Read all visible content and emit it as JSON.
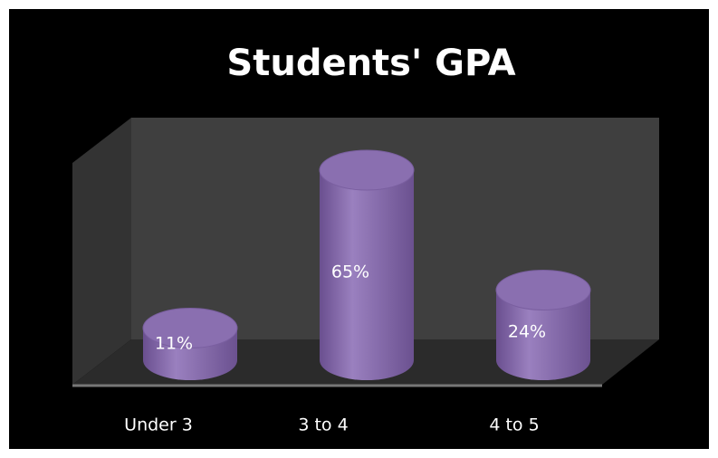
{
  "chart_data": {
    "type": "bar3d",
    "title": "Students' GPA",
    "categories": [
      "Under 3",
      "3 to 4",
      "4 to 5"
    ],
    "values": [
      11,
      65,
      24
    ],
    "value_labels": [
      "11%",
      "65%",
      "24%"
    ],
    "color": "#8064a2"
  }
}
